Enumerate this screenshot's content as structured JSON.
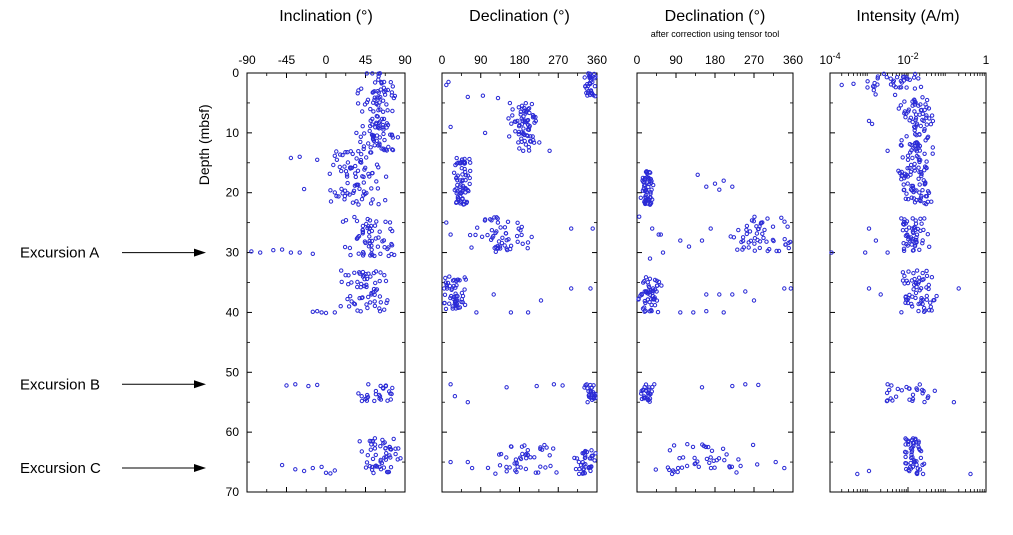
{
  "chart_data": {
    "type": "scatter",
    "ylabel": "Depth (mbsf)",
    "y_ticks": [
      "0",
      "10",
      "20",
      "30",
      "40",
      "50",
      "60",
      "70"
    ],
    "ylim": [
      0,
      70
    ],
    "y_inverted": true,
    "marker_color": "#2b2bd6",
    "grid": false,
    "panels": [
      {
        "id": "inclination",
        "title": "Inclination (°)",
        "subtitle": "",
        "xlim": [
          -90,
          90
        ],
        "xscale": "linear",
        "tick_values": [
          -90,
          -45,
          0,
          45,
          90
        ],
        "tick_labels": [
          "-90",
          "-45",
          "0",
          "45",
          "90"
        ],
        "clusters": [
          {
            "y": [
              0,
              13
            ],
            "x": [
              30,
              88
            ]
          },
          {
            "y": [
              13,
              22
            ],
            "x": [
              0,
              70
            ]
          },
          {
            "y": [
              24,
              31
            ],
            "x": [
              15,
              88
            ]
          },
          {
            "y": [
              33,
              40
            ],
            "x": [
              15,
              75
            ]
          },
          {
            "y": [
              52,
              55
            ],
            "x": [
              30,
              90
            ]
          },
          {
            "y": [
              61,
              67
            ],
            "x": [
              35,
              90
            ]
          }
        ],
        "points": [
          [
            -40,
            14.2
          ],
          [
            -30,
            14
          ],
          [
            -25,
            19.4
          ],
          [
            -10,
            14.5
          ],
          [
            5,
            19.6
          ],
          [
            -85,
            29.8
          ],
          [
            -75,
            30
          ],
          [
            -60,
            29.6
          ],
          [
            -50,
            29.5
          ],
          [
            -40,
            30
          ],
          [
            -30,
            30
          ],
          [
            -15,
            30.2
          ],
          [
            -10,
            39.8
          ],
          [
            -5,
            40
          ],
          [
            0,
            40.1
          ],
          [
            10,
            40
          ],
          [
            -15,
            39.9
          ],
          [
            -45,
            52.2
          ],
          [
            -35,
            52
          ],
          [
            -20,
            52.3
          ],
          [
            -10,
            52.1
          ],
          [
            -50,
            65.5
          ],
          [
            -35,
            66.2
          ],
          [
            -25,
            66.5
          ],
          [
            -15,
            66
          ],
          [
            -5,
            65.8
          ],
          [
            0,
            66.8
          ],
          [
            5,
            66.9
          ],
          [
            10,
            66.4
          ]
        ]
      },
      {
        "id": "declination",
        "title": "Declination (°)",
        "subtitle": "",
        "xlim": [
          0,
          360
        ],
        "xscale": "linear",
        "tick_values": [
          0,
          90,
          180,
          270,
          360
        ],
        "tick_labels": [
          "0",
          "90",
          "180",
          "270",
          "360"
        ],
        "clusters": [
          {
            "y": [
              0,
              4
            ],
            "x": [
              330,
              360
            ]
          },
          {
            "y": [
              5,
              13
            ],
            "x": [
              150,
              230
            ]
          },
          {
            "y": [
              14,
              22
            ],
            "x": [
              25,
              70
            ]
          },
          {
            "y": [
              24,
              30
            ],
            "x": [
              60,
              220
            ]
          },
          {
            "y": [
              34,
              40
            ],
            "x": [
              0,
              60
            ]
          },
          {
            "y": [
              52,
              55
            ],
            "x": [
              330,
              360
            ]
          },
          {
            "y": [
              62,
              67
            ],
            "x": [
              100,
              280
            ]
          },
          {
            "y": [
              63,
              67
            ],
            "x": [
              300,
              360
            ]
          }
        ],
        "points": [
          [
            10,
            2
          ],
          [
            15,
            1.5
          ],
          [
            60,
            4
          ],
          [
            95,
            3.8
          ],
          [
            130,
            4.2
          ],
          [
            20,
            9
          ],
          [
            100,
            10
          ],
          [
            250,
            13
          ],
          [
            10,
            25
          ],
          [
            20,
            27
          ],
          [
            300,
            26
          ],
          [
            350,
            26
          ],
          [
            5,
            36
          ],
          [
            120,
            37
          ],
          [
            230,
            38
          ],
          [
            300,
            36
          ],
          [
            345,
            36
          ],
          [
            80,
            40
          ],
          [
            160,
            40
          ],
          [
            200,
            40
          ],
          [
            20,
            52
          ],
          [
            150,
            52.5
          ],
          [
            220,
            52.3
          ],
          [
            260,
            52
          ],
          [
            280,
            52.2
          ],
          [
            30,
            54
          ],
          [
            60,
            55
          ],
          [
            20,
            65
          ],
          [
            60,
            65
          ],
          [
            70,
            66
          ]
        ]
      },
      {
        "id": "declination_corrected",
        "title": "Declination (°)",
        "subtitle": "after correction using tensor tool",
        "xlim": [
          0,
          360
        ],
        "xscale": "linear",
        "tick_values": [
          0,
          90,
          180,
          270,
          360
        ],
        "tick_labels": [
          "0",
          "90",
          "180",
          "270",
          "360"
        ],
        "clusters": [
          {
            "y": [
              16,
              22
            ],
            "x": [
              5,
              40
            ]
          },
          {
            "y": [
              24,
              30
            ],
            "x": [
              200,
              360
            ]
          },
          {
            "y": [
              34,
              40
            ],
            "x": [
              0,
              60
            ]
          },
          {
            "y": [
              52,
              55
            ],
            "x": [
              5,
              40
            ]
          },
          {
            "y": [
              62,
              67
            ],
            "x": [
              20,
              300
            ]
          }
        ],
        "points": [
          [
            140,
            17
          ],
          [
            160,
            19
          ],
          [
            180,
            18.5
          ],
          [
            190,
            19.5
          ],
          [
            200,
            18
          ],
          [
            220,
            19
          ],
          [
            30,
            22
          ],
          [
            35,
            26
          ],
          [
            55,
            27
          ],
          [
            100,
            28
          ],
          [
            120,
            29
          ],
          [
            150,
            28
          ],
          [
            170,
            26
          ],
          [
            60,
            30
          ],
          [
            30,
            31
          ],
          [
            5,
            24
          ],
          [
            50,
            27
          ],
          [
            160,
            37
          ],
          [
            190,
            37
          ],
          [
            220,
            37
          ],
          [
            250,
            36.5
          ],
          [
            270,
            38
          ],
          [
            100,
            40
          ],
          [
            130,
            40
          ],
          [
            160,
            39.8
          ],
          [
            200,
            40
          ],
          [
            340,
            36
          ],
          [
            355,
            36
          ],
          [
            40,
            52
          ],
          [
            150,
            52.5
          ],
          [
            220,
            52.3
          ],
          [
            250,
            52
          ],
          [
            280,
            52.1
          ],
          [
            320,
            65
          ],
          [
            340,
            66
          ]
        ]
      },
      {
        "id": "intensity",
        "title": "Intensity (A/m)",
        "subtitle": "",
        "xlim": [
          0.0001,
          1
        ],
        "xscale": "log",
        "tick_values": [
          0.0001,
          0.01,
          1
        ],
        "tick_labels": [
          "10-4",
          "10-2",
          "1"
        ],
        "clusters": [
          {
            "y": [
              0,
              4
            ],
            "x": [
              0.0006,
              0.03
            ]
          },
          {
            "y": [
              4,
              22
            ],
            "x": [
              0.005,
              0.05
            ]
          },
          {
            "y": [
              24,
              30
            ],
            "x": [
              0.005,
              0.04
            ]
          },
          {
            "y": [
              33,
              40
            ],
            "x": [
              0.006,
              0.06
            ]
          },
          {
            "y": [
              52,
              55
            ],
            "x": [
              0.002,
              0.08
            ]
          },
          {
            "y": [
              61,
              67
            ],
            "x": [
              0.006,
              0.03
            ]
          }
        ],
        "points": [
          [
            0.0002,
            2
          ],
          [
            0.0004,
            1.8
          ],
          [
            0.001,
            8
          ],
          [
            0.0012,
            8.5
          ],
          [
            0.003,
            13
          ],
          [
            0.001,
            26
          ],
          [
            0.0015,
            28
          ],
          [
            0.0008,
            30
          ],
          [
            0.003,
            30
          ],
          [
            0.002,
            37
          ],
          [
            0.001,
            36
          ],
          [
            0.2,
            36
          ],
          [
            0.003,
            52
          ],
          [
            0.15,
            55
          ],
          [
            0.001,
            66.5
          ],
          [
            0.0005,
            67
          ],
          [
            0.0001,
            30
          ],
          [
            0.4,
            67
          ]
        ]
      }
    ],
    "annotations": [
      {
        "label": "Excursion A",
        "depth": 30
      },
      {
        "label": "Excursion B",
        "depth": 52
      },
      {
        "label": "Excursion C",
        "depth": 66
      }
    ]
  }
}
